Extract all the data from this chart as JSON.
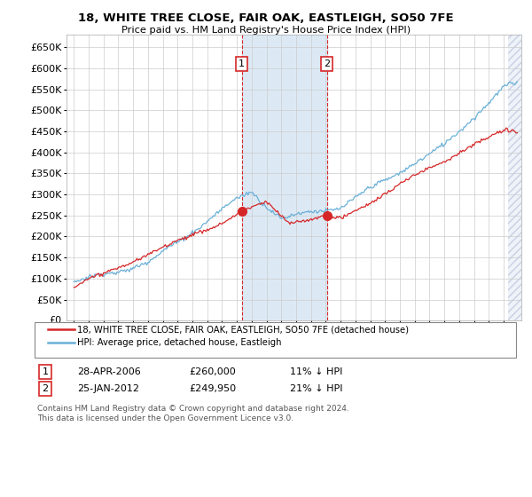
{
  "title": "18, WHITE TREE CLOSE, FAIR OAK, EASTLEIGH, SO50 7FE",
  "subtitle": "Price paid vs. HM Land Registry's House Price Index (HPI)",
  "hpi_color": "#6ab0d8",
  "price_color": "#d62728",
  "bg_color": "#ffffff",
  "grid_color": "#cccccc",
  "highlight_color": "#dce9f5",
  "sale1_date_str": "28-APR-2006",
  "sale1_price": 260000,
  "sale1_hpi_pct": "11% ↓ HPI",
  "sale2_date_str": "25-JAN-2012",
  "sale2_price": 249950,
  "sale2_hpi_pct": "21% ↓ HPI",
  "legend_line1": "18, WHITE TREE CLOSE, FAIR OAK, EASTLEIGH, SO50 7FE (detached house)",
  "legend_line2": "HPI: Average price, detached house, Eastleigh",
  "footnote": "Contains HM Land Registry data © Crown copyright and database right 2024.\nThis data is licensed under the Open Government Licence v3.0.",
  "ylim": [
    0,
    680000
  ],
  "ytick_vals": [
    50000,
    100000,
    150000,
    200000,
    250000,
    300000,
    350000,
    400000,
    450000,
    500000,
    550000,
    600000,
    650000
  ],
  "ytick_labels": [
    "£50K",
    "£100K",
    "£150K",
    "£200K",
    "£250K",
    "£300K",
    "£350K",
    "£400K",
    "£450K",
    "£500K",
    "£550K",
    "£600K",
    "£650K"
  ],
  "sale1_year": 2006.32,
  "sale2_year": 2012.07,
  "xmin": 1994.5,
  "xmax": 2025.2,
  "hatch_start": 2024.3
}
